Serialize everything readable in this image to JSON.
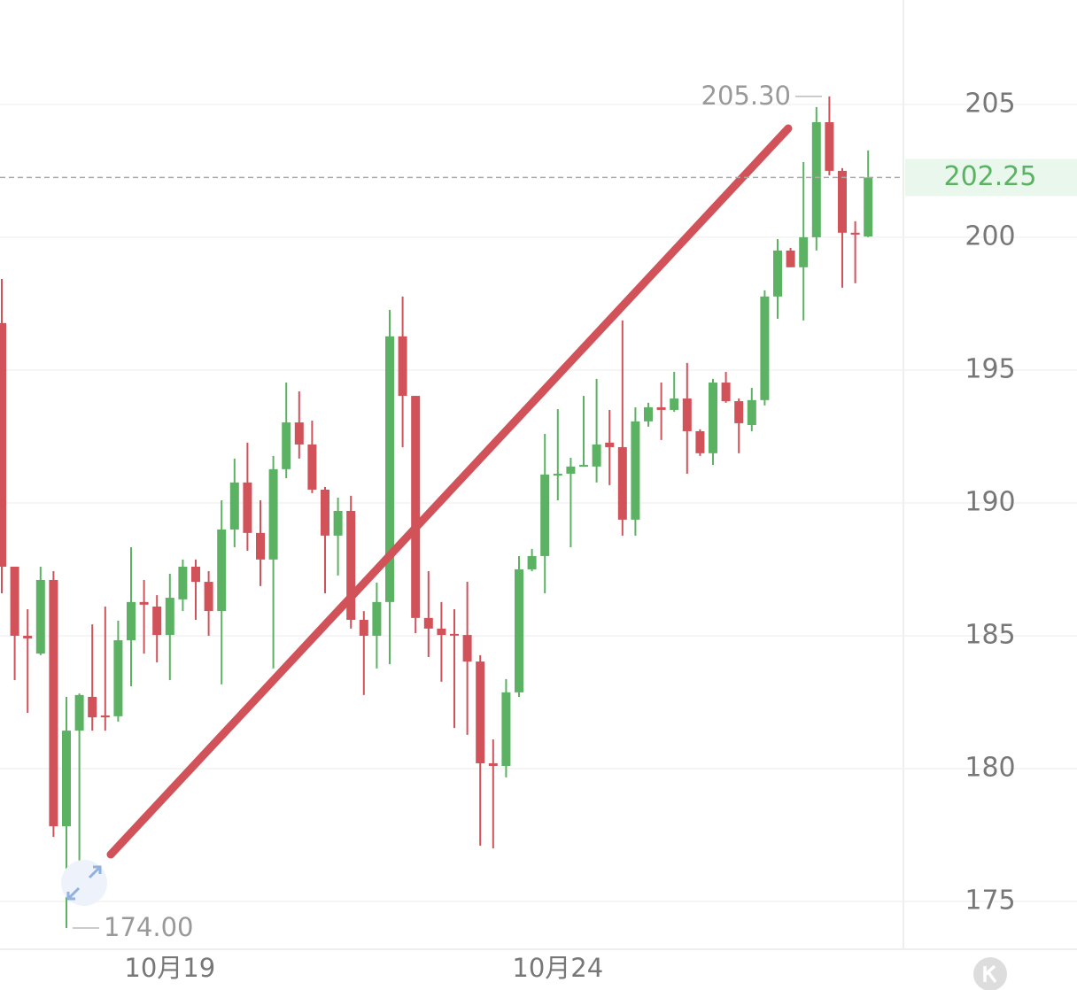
{
  "chart_data": {
    "type": "candlestick",
    "categories": [
      null,
      null,
      null,
      null,
      null,
      null,
      null,
      null,
      null,
      null,
      null,
      null,
      null,
      "10月19",
      null,
      null,
      null,
      null,
      null,
      null,
      null,
      null,
      null,
      null,
      null,
      null,
      null,
      null,
      null,
      null,
      null,
      null,
      null,
      null,
      null,
      null,
      null,
      null,
      null,
      null,
      null,
      null,
      null,
      "10月24",
      null,
      null,
      null,
      null,
      null,
      null,
      null,
      null,
      null,
      null,
      null,
      null,
      null,
      null,
      null,
      null,
      null,
      null,
      null,
      null,
      null,
      null,
      null,
      null
    ],
    "open": [
      196.77,
      187.6,
      185.0,
      184.33,
      187.1,
      177.83,
      181.43,
      182.7,
      182.0,
      181.97,
      184.83,
      186.27,
      186.1,
      185.03,
      186.37,
      187.6,
      187.03,
      185.93,
      189.0,
      190.77,
      188.87,
      187.87,
      191.27,
      193.03,
      192.2,
      190.5,
      188.77,
      189.7,
      185.6,
      185.0,
      186.27,
      196.27,
      194.03,
      185.67,
      185.27,
      185.07,
      185.03,
      184.03,
      180.2,
      180.1,
      182.87,
      187.5,
      188.0,
      191.03,
      191.1,
      191.4,
      191.37,
      192.27,
      192.1,
      189.37,
      193.07,
      193.6,
      193.5,
      193.93,
      192.7,
      191.87,
      194.53,
      193.83,
      192.93,
      193.87,
      197.77,
      199.5,
      198.87,
      200.0,
      204.33,
      202.5,
      200.17,
      200.03
    ],
    "high": [
      198.43,
      187.6,
      186.0,
      187.6,
      187.43,
      182.7,
      182.83,
      185.43,
      186.1,
      185.57,
      188.33,
      187.1,
      186.53,
      187.33,
      187.87,
      187.87,
      187.43,
      190.1,
      191.67,
      192.27,
      190.1,
      191.77,
      194.53,
      194.2,
      193.1,
      190.6,
      190.2,
      190.27,
      185.93,
      187.0,
      197.27,
      197.77,
      194.03,
      187.43,
      186.27,
      186.0,
      187.03,
      184.27,
      181.1,
      183.37,
      188.0,
      188.27,
      192.6,
      193.53,
      191.7,
      194.03,
      194.67,
      193.5,
      196.87,
      193.6,
      193.77,
      194.53,
      194.93,
      195.27,
      192.77,
      194.67,
      194.93,
      193.93,
      194.33,
      198.0,
      199.93,
      199.6,
      202.83,
      204.9,
      205.3,
      202.6,
      200.6,
      203.27
    ],
    "low": [
      186.6,
      183.33,
      182.1,
      184.27,
      177.43,
      174.0,
      176.33,
      181.43,
      181.43,
      181.77,
      183.1,
      184.33,
      184.0,
      183.33,
      185.93,
      185.6,
      185.0,
      183.17,
      188.33,
      188.2,
      186.87,
      183.77,
      190.93,
      191.67,
      190.37,
      186.6,
      187.27,
      185.27,
      182.77,
      183.77,
      183.93,
      192.1,
      185.1,
      184.2,
      183.27,
      181.53,
      181.27,
      177.1,
      177.0,
      179.67,
      182.7,
      187.43,
      186.6,
      190.1,
      188.33,
      191.37,
      190.77,
      190.67,
      188.77,
      188.77,
      192.87,
      192.37,
      193.43,
      191.1,
      191.77,
      191.43,
      193.77,
      191.87,
      192.7,
      193.67,
      196.93,
      198.87,
      196.87,
      199.5,
      202.33,
      198.1,
      198.27,
      200.0
    ],
    "close": [
      187.6,
      185.0,
      184.9,
      187.1,
      177.83,
      181.43,
      182.77,
      181.93,
      181.93,
      184.83,
      186.27,
      186.17,
      185.03,
      186.43,
      187.6,
      187.03,
      185.93,
      189.0,
      190.77,
      188.87,
      187.87,
      191.27,
      193.03,
      192.2,
      190.5,
      188.77,
      189.7,
      185.6,
      185.0,
      186.27,
      196.27,
      194.03,
      185.67,
      185.27,
      185.03,
      185.03,
      184.03,
      180.2,
      180.1,
      182.87,
      187.5,
      188.0,
      191.07,
      191.1,
      191.37,
      191.43,
      192.2,
      192.1,
      189.37,
      193.07,
      193.6,
      193.5,
      193.93,
      192.7,
      191.87,
      194.53,
      193.83,
      193.0,
      193.87,
      197.77,
      199.5,
      198.87,
      200.0,
      204.33,
      202.5,
      200.17,
      200.1,
      202.25
    ],
    "up_color": "#5cb263",
    "down_color": "#d2525a",
    "ylim": [
      173.2,
      208.93
    ],
    "yticks": [
      175,
      180,
      185,
      190,
      195,
      200,
      205
    ],
    "grid": true,
    "last_price": 202.25,
    "annotations": [
      {
        "value": 205.3,
        "label": "205.30"
      },
      {
        "value": 174,
        "label": "174.00"
      }
    ]
  }
}
